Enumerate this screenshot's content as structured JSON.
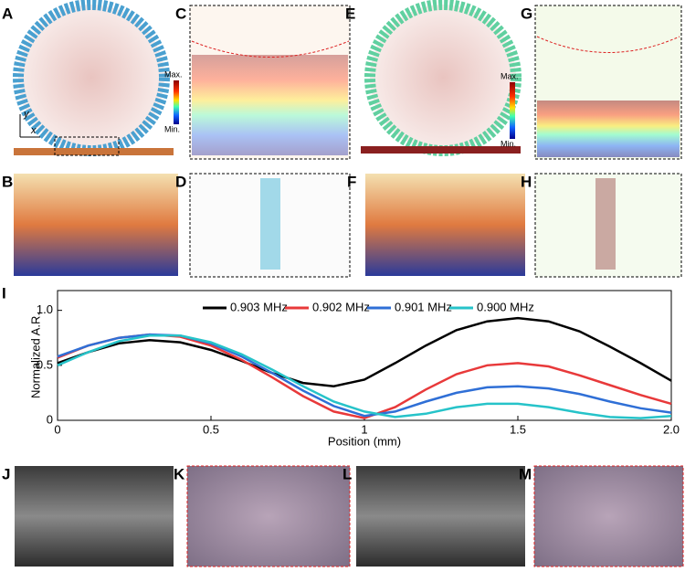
{
  "panels": {
    "a": "A",
    "b": "B",
    "c": "C",
    "d": "D",
    "e": "E",
    "f": "F",
    "g": "G",
    "h": "H",
    "i": "I",
    "j": "J",
    "k": "K",
    "l": "L",
    "m": "M"
  },
  "colorbars": [
    {
      "max": "Max.",
      "min": "Min."
    },
    {
      "max": "Max.",
      "min": "Min."
    }
  ],
  "axes_glyph": {
    "y": "y",
    "x": "x"
  },
  "chart_data": {
    "type": "line",
    "xlabel": "Position (mm)",
    "ylabel": "Normalized A.R.",
    "x": [
      0,
      0.1,
      0.2,
      0.3,
      0.4,
      0.5,
      0.6,
      0.7,
      0.8,
      0.9,
      1.0,
      1.1,
      1.2,
      1.3,
      1.4,
      1.5,
      1.6,
      1.7,
      1.8,
      1.9,
      2.0
    ],
    "xlim": [
      0,
      2
    ],
    "xticks": [
      0,
      0.5,
      1,
      1.5,
      {
        "value": 2,
        "label": "2.0"
      }
    ],
    "ylim": [
      0,
      1.18
    ],
    "yticks": [
      0,
      0.5,
      {
        "value": 1,
        "label": "1.0"
      }
    ],
    "series": [
      {
        "name": "0.903 MHz",
        "color": "#000000",
        "values": [
          0.52,
          0.62,
          0.7,
          0.73,
          0.71,
          0.64,
          0.54,
          0.43,
          0.34,
          0.31,
          0.37,
          0.52,
          0.68,
          0.82,
          0.9,
          0.93,
          0.9,
          0.81,
          0.67,
          0.52,
          0.36
        ]
      },
      {
        "name": "0.902 MHz",
        "color": "#e8393a",
        "values": [
          0.57,
          0.68,
          0.75,
          0.78,
          0.76,
          0.68,
          0.55,
          0.39,
          0.22,
          0.08,
          0.02,
          0.12,
          0.28,
          0.42,
          0.5,
          0.52,
          0.49,
          0.41,
          0.32,
          0.23,
          0.15
        ]
      },
      {
        "name": "0.901 MHz",
        "color": "#2f6fd6",
        "values": [
          0.58,
          0.68,
          0.75,
          0.78,
          0.77,
          0.7,
          0.58,
          0.43,
          0.27,
          0.13,
          0.04,
          0.08,
          0.17,
          0.25,
          0.3,
          0.31,
          0.29,
          0.24,
          0.17,
          0.11,
          0.07
        ]
      },
      {
        "name": "0.900 MHz",
        "color": "#26c3c9",
        "values": [
          0.5,
          0.62,
          0.72,
          0.77,
          0.77,
          0.71,
          0.6,
          0.46,
          0.31,
          0.17,
          0.08,
          0.03,
          0.06,
          0.12,
          0.15,
          0.15,
          0.12,
          0.07,
          0.03,
          0.02,
          0.04
        ]
      }
    ]
  }
}
